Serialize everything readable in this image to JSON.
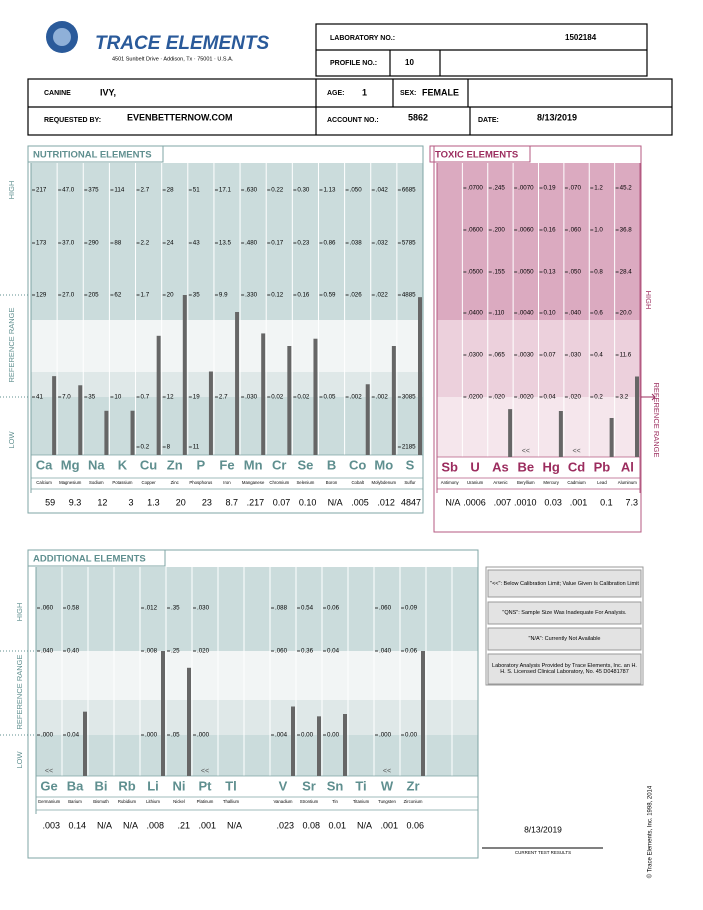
{
  "header": {
    "company": "TRACE ELEMENTS",
    "address": "4501 Sunbelt Drive · Addison, Tx · 75001 · U.S.A.",
    "lab_no_label": "LABORATORY NO.:",
    "lab_no": "1502184",
    "profile_label": "PROFILE NO.:",
    "profile_no": "10"
  },
  "patient": {
    "species": "CANINE",
    "name": "IVY,",
    "age_label": "AGE:",
    "age": "1",
    "sex_label": "SEX:",
    "sex": "FEMALE",
    "requested_label": "REQUESTED BY:",
    "requested_by": "EVENBETTERNOW.COM",
    "account_label": "ACCOUNT NO.:",
    "account_no": "5862",
    "date_label": "DATE:",
    "date": "8/13/2019"
  },
  "nutritional": {
    "title": "NUTRITIONAL ELEMENTS",
    "axis_high": "HIGH",
    "axis_reference": "REFERENCE RANGE",
    "axis_low": "LOW",
    "elements": [
      {
        "symbol": "Ca",
        "name": "Calcium",
        "scale": [
          "217",
          "173",
          "129",
          "41",
          null
        ],
        "result": "59"
      },
      {
        "symbol": "Mg",
        "name": "Magnesium",
        "scale": [
          "47.0",
          "37.0",
          "27.0",
          "7.0",
          null
        ],
        "result": "9.3"
      },
      {
        "symbol": "Na",
        "name": "Sodium",
        "scale": [
          "375",
          "290",
          "205",
          "35",
          null
        ],
        "result": "12"
      },
      {
        "symbol": "K",
        "name": "Potassium",
        "scale": [
          "114",
          "88",
          "62",
          "10",
          null
        ],
        "result": "3"
      },
      {
        "symbol": "Cu",
        "name": "Copper",
        "scale": [
          "2.7",
          "2.2",
          "1.7",
          "0.7",
          "0.2"
        ],
        "result": "1.3"
      },
      {
        "symbol": "Zn",
        "name": "Zinc",
        "scale": [
          "28",
          "24",
          "20",
          "12",
          "8"
        ],
        "result": "20"
      },
      {
        "symbol": "P",
        "name": "Phosphorus",
        "scale": [
          "51",
          "43",
          "35",
          "19",
          "11"
        ],
        "result": "23"
      },
      {
        "symbol": "Fe",
        "name": "Iron",
        "scale": [
          "17.1",
          "13.5",
          "9.9",
          "2.7",
          null
        ],
        "result": "8.7"
      },
      {
        "symbol": "Mn",
        "name": "Manganese",
        "scale": [
          ".630",
          ".480",
          ".330",
          ".030",
          null
        ],
        "result": ".217"
      },
      {
        "symbol": "Cr",
        "name": "Chromium",
        "scale": [
          "0.22",
          "0.17",
          "0.12",
          "0.02",
          null
        ],
        "result": "0.07"
      },
      {
        "symbol": "Se",
        "name": "Selenium",
        "scale": [
          "0.30",
          "0.23",
          "0.16",
          "0.02",
          null
        ],
        "result": "0.10"
      },
      {
        "symbol": "B",
        "name": "Boron",
        "scale": [
          "1.13",
          "0.86",
          "0.59",
          "0.05",
          null
        ],
        "result": "N/A"
      },
      {
        "symbol": "Co",
        "name": "Cobalt",
        "scale": [
          ".050",
          ".038",
          ".026",
          ".002",
          null
        ],
        "result": ".005"
      },
      {
        "symbol": "Mo",
        "name": "Molybdenum",
        "scale": [
          ".042",
          ".032",
          ".022",
          ".002",
          null
        ],
        "result": ".012"
      },
      {
        "symbol": "S",
        "name": "Sulfur",
        "scale": [
          "6685",
          "5785",
          "4885",
          "3085",
          "2185"
        ],
        "result": "4847"
      }
    ]
  },
  "toxic": {
    "title": "TOXIC ELEMENTS",
    "axis_high": "HIGH",
    "axis_reference": "REFERENCE RANGE",
    "elements": [
      {
        "symbol": "Sb",
        "name": "Antimony",
        "scale": null,
        "result": "N/A"
      },
      {
        "symbol": "U",
        "name": "Uranium",
        "scale": [
          ".0700",
          ".0600",
          ".0500",
          ".0400",
          ".0300",
          ".0200"
        ],
        "result": ".0006"
      },
      {
        "symbol": "As",
        "name": "Arsenic",
        "scale": [
          ".245",
          ".200",
          ".155",
          ".110",
          ".065",
          ".020"
        ],
        "result": ".007"
      },
      {
        "symbol": "Be",
        "name": "Beryllium",
        "scale": [
          ".0070",
          ".0060",
          ".0050",
          ".0040",
          ".0030",
          ".0020"
        ],
        "result": ".0010",
        "flag": "<<"
      },
      {
        "symbol": "Hg",
        "name": "Mercury",
        "scale": [
          "0.19",
          "0.16",
          "0.13",
          "0.10",
          "0.07",
          "0.04"
        ],
        "result": "0.03"
      },
      {
        "symbol": "Cd",
        "name": "Cadmium",
        "scale": [
          ".070",
          ".060",
          ".050",
          ".040",
          ".030",
          ".020"
        ],
        "result": ".001",
        "flag": "<<"
      },
      {
        "symbol": "Pb",
        "name": "Lead",
        "scale": [
          "1.2",
          "1.0",
          "0.8",
          "0.6",
          "0.4",
          "0.2"
        ],
        "result": "0.1"
      },
      {
        "symbol": "Al",
        "name": "Aluminum",
        "scale": [
          "45.2",
          "36.8",
          "28.4",
          "20.0",
          "11.6",
          "3.2"
        ],
        "result": "7.3"
      }
    ]
  },
  "additional": {
    "title": "ADDITIONAL ELEMENTS",
    "axis_high": "HIGH",
    "axis_reference": "REFERENCE RANGE",
    "axis_low": "LOW",
    "elements": [
      {
        "symbol": "Ge",
        "name": "Germanium",
        "scale": [
          ".060",
          ".040",
          ".000"
        ],
        "result": ".003",
        "flag": "<<"
      },
      {
        "symbol": "Ba",
        "name": "Barium",
        "scale": [
          "0.58",
          "0.40",
          "0.04"
        ],
        "result": "0.14"
      },
      {
        "symbol": "Bi",
        "name": "Bismuth",
        "scale": null,
        "result": "N/A"
      },
      {
        "symbol": "Rb",
        "name": "Rubidium",
        "scale": null,
        "result": "N/A"
      },
      {
        "symbol": "Li",
        "name": "Lithium",
        "scale": [
          ".012",
          ".008",
          ".000"
        ],
        "result": ".008"
      },
      {
        "symbol": "Ni",
        "name": "Nickel",
        "scale": [
          ".35",
          ".25",
          ".05"
        ],
        "result": ".21"
      },
      {
        "symbol": "Pt",
        "name": "Platinum",
        "scale": [
          ".030",
          ".020",
          ".000"
        ],
        "result": ".001",
        "flag": "<<"
      },
      {
        "symbol": "Tl",
        "name": "Thallium",
        "scale": null,
        "result": "N/A"
      },
      {
        "symbol": "V",
        "name": "Vanadium",
        "scale": [
          ".088",
          ".060",
          ".004"
        ],
        "result": ".023"
      },
      {
        "symbol": "Sr",
        "name": "Strontium",
        "scale": [
          "0.54",
          "0.36",
          "0.00"
        ],
        "result": "0.08"
      },
      {
        "symbol": "Sn",
        "name": "Tin",
        "scale": [
          "0.06",
          "0.04",
          "0.00"
        ],
        "result": "0.01"
      },
      {
        "symbol": "Ti",
        "name": "Titanium",
        "scale": null,
        "result": "N/A"
      },
      {
        "symbol": "W",
        "name": "Tungsten",
        "scale": [
          ".060",
          ".040",
          ".000"
        ],
        "result": ".001",
        "flag": "<<"
      },
      {
        "symbol": "Zr",
        "name": "Zirconium",
        "scale": [
          "0.09",
          "0.06",
          "0.00"
        ],
        "result": "0.06"
      }
    ]
  },
  "notes": [
    "\"<<\": Below Calibration Limit; Value Given Is Calibration Limit",
    "\"QNS\": Sample Size Was Inadequate For Analysis.",
    "\"N/A\": Currently Not Available",
    "Laboratory Analysis Provided by Trace Elements, Inc. an H. H. S. Licensed Clinical Laboratory, No. 45 D0481787"
  ],
  "footer": {
    "date": "8/13/2019",
    "caption": "CURRENT TEST RESULTS",
    "copyright": "© Trace Elements, Inc. 1998, 2014"
  }
}
